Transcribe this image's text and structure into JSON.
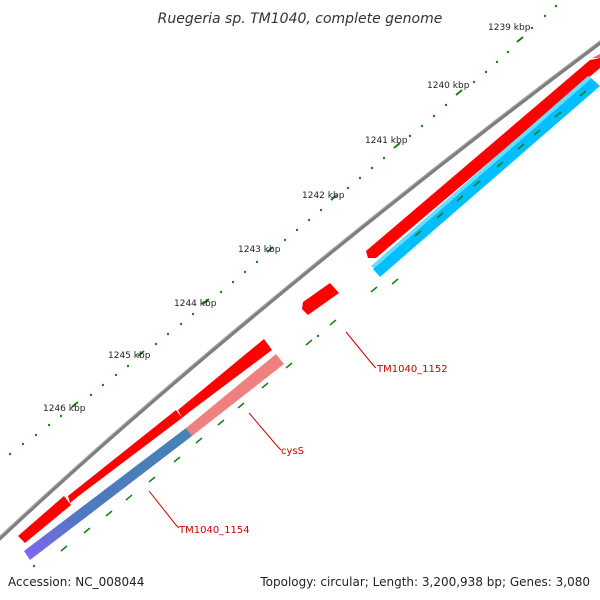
{
  "title": "Ruegeria sp. TM1040, complete genome",
  "footer": {
    "accession": "Accession: NC_008044",
    "summary": "Topology: circular; Length: 3,200,938 bp; Genes: 3,080"
  },
  "ruler": {
    "ticks": [
      "1239 kbp",
      "1240 kbp",
      "1241 kbp",
      "1242 kbp",
      "1243 kbp",
      "1244 kbp",
      "1245 kbp",
      "1246 kbp"
    ]
  },
  "genes": [
    {
      "name": "TM1040_1152",
      "label": "TM1040_1152"
    },
    {
      "name": "cysS",
      "label": "cysS"
    },
    {
      "name": "TM1040_1154",
      "label": "TM1040_1154"
    }
  ],
  "colors": {
    "backbone": "#7f7f7f",
    "gene": "#ff0000",
    "cds_blue": "#00bfff",
    "cds_pink": "#f08080",
    "cds_steel": "#4682b4",
    "cds_purple": "#7b68ee",
    "tick": "#1a7f1a",
    "label": "#cc0000"
  }
}
